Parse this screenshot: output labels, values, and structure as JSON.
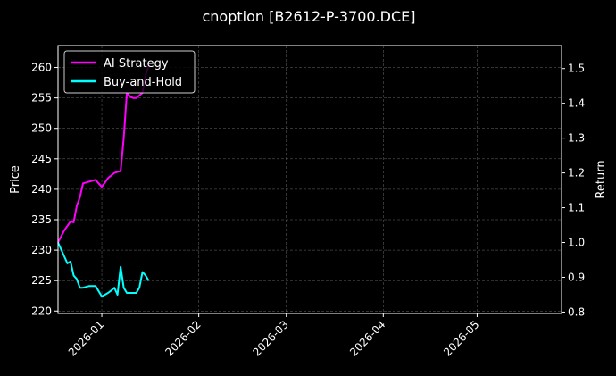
{
  "chart_data": {
    "type": "line",
    "title": "cnoption [B2612-P-3700.DCE]",
    "xlabel": "",
    "ylabel_left": "Price",
    "ylabel_right": "Return",
    "x_ticks": [
      "2026-01",
      "2026-02",
      "2026-03",
      "2026-04",
      "2026-05"
    ],
    "y_left_ticks": [
      220,
      225,
      230,
      235,
      240,
      245,
      250,
      255,
      260
    ],
    "y_right_ticks": [
      "0.8",
      "0.9",
      "1.0",
      "1.1",
      "1.2",
      "1.3",
      "1.4",
      "1.5"
    ],
    "xlim": [
      "2025-12-18",
      "2026-05-28"
    ],
    "ylim_left": [
      219.6,
      263.6
    ],
    "ylim_right": [
      0.796,
      1.566
    ],
    "grid": true,
    "legend_position": "top-left",
    "series": [
      {
        "name": "AI Strategy",
        "axis": "right",
        "color": "#ff00ff",
        "x": [
          "2025-12-18",
          "2025-12-20",
          "2025-12-22",
          "2025-12-23",
          "2025-12-24",
          "2025-12-25",
          "2025-12-26",
          "2025-12-28",
          "2025-12-30",
          "2026-01-01",
          "2026-01-02",
          "2026-01-03",
          "2026-01-05",
          "2026-01-07",
          "2026-01-08",
          "2026-01-09",
          "2026-01-10",
          "2026-01-11",
          "2026-01-12",
          "2026-01-14",
          "2026-01-15",
          "2026-01-16"
        ],
        "values": [
          1.0,
          1.035,
          1.06,
          1.058,
          1.105,
          1.13,
          1.17,
          1.175,
          1.18,
          1.16,
          1.172,
          1.185,
          1.2,
          1.205,
          1.3,
          1.43,
          1.42,
          1.415,
          1.415,
          1.43,
          1.48,
          1.51
        ]
      },
      {
        "name": "Buy-and-Hold",
        "axis": "right",
        "color": "#00ffff",
        "x": [
          "2025-12-18",
          "2025-12-20",
          "2025-12-21",
          "2025-12-22",
          "2025-12-23",
          "2025-12-24",
          "2025-12-25",
          "2025-12-26",
          "2025-12-28",
          "2025-12-30",
          "2026-01-01",
          "2026-01-02",
          "2026-01-03",
          "2026-01-04",
          "2026-01-05",
          "2026-01-06",
          "2026-01-07",
          "2026-01-08",
          "2026-01-09",
          "2026-01-10",
          "2026-01-12",
          "2026-01-13",
          "2026-01-14",
          "2026-01-15",
          "2026-01-16"
        ],
        "values": [
          1.0,
          0.96,
          0.94,
          0.945,
          0.905,
          0.895,
          0.87,
          0.87,
          0.875,
          0.875,
          0.845,
          0.85,
          0.855,
          0.862,
          0.87,
          0.85,
          0.93,
          0.87,
          0.855,
          0.855,
          0.855,
          0.87,
          0.915,
          0.905,
          0.89
        ]
      }
    ]
  }
}
